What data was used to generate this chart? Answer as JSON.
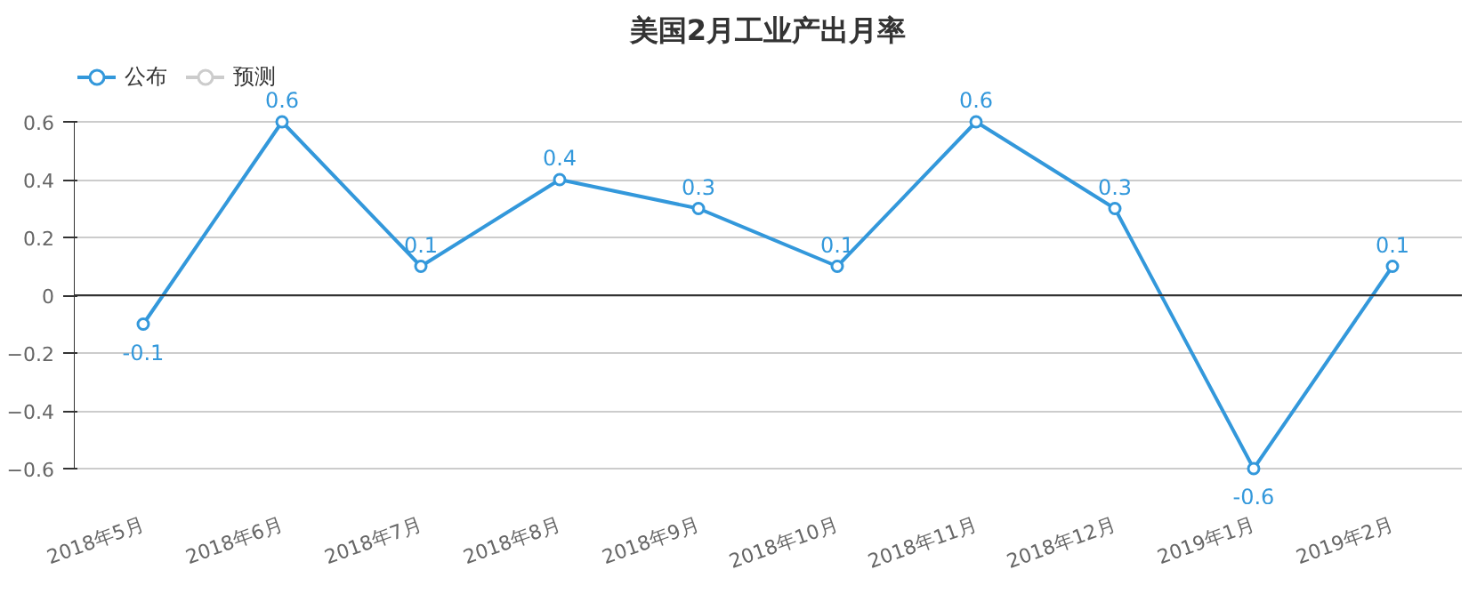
{
  "chart_data": {
    "type": "line",
    "title": "美国2月工业产出月率",
    "categories": [
      "2018年5月",
      "2018年6月",
      "2018年7月",
      "2018年8月",
      "2018年9月",
      "2018年10月",
      "2018年11月",
      "2018年12月",
      "2019年1月",
      "2019年2月"
    ],
    "series": [
      {
        "name": "公布",
        "color": "#3398db",
        "values": [
          -0.1,
          0.6,
          0.1,
          0.4,
          0.3,
          0.1,
          0.6,
          0.3,
          -0.6,
          0.1
        ]
      },
      {
        "name": "预测",
        "color": "#cccccc",
        "values": [
          null,
          null,
          null,
          null,
          null,
          null,
          null,
          null,
          null,
          null
        ]
      }
    ],
    "ylim": [
      -0.6,
      0.6
    ],
    "yticks": [
      -0.6,
      -0.4,
      -0.2,
      0,
      0.2,
      0.4,
      0.6
    ],
    "grid": "y",
    "legend": "top left",
    "marker": "circle",
    "line_style": "solid",
    "data_labels": true
  }
}
